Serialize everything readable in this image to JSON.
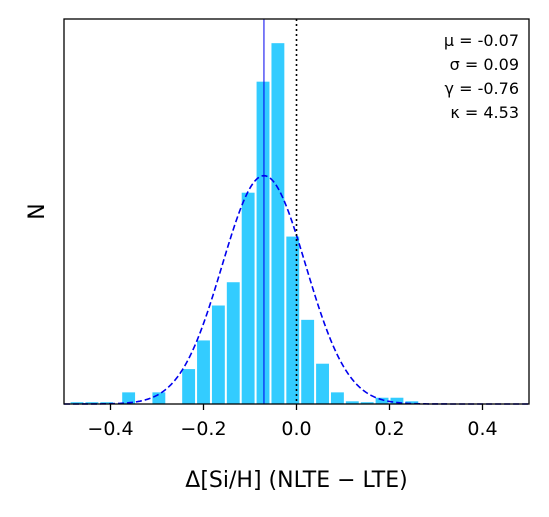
{
  "chart_data": {
    "type": "bar",
    "title": "",
    "xlabel": "Δ[Si/H] (NLTE − LTE)",
    "ylabel": "N",
    "xlim": [
      -0.5,
      0.5
    ],
    "ylim": [
      0,
      430
    ],
    "y_ticks_shown": false,
    "x_ticks": [
      -0.4,
      -0.2,
      0.0,
      0.2,
      0.4
    ],
    "x_tick_labels": [
      "−0.4",
      "−0.2",
      "0.0",
      "0.2",
      "0.4"
    ],
    "bar_color": "#33ccff",
    "bin_width": 0.032,
    "bars": [
      {
        "x": -0.472,
        "n": 2
      },
      {
        "x": -0.44,
        "n": 2
      },
      {
        "x": -0.408,
        "n": 2
      },
      {
        "x": -0.361,
        "n": 13
      },
      {
        "x": -0.296,
        "n": 13
      },
      {
        "x": -0.232,
        "n": 39
      },
      {
        "x": -0.2,
        "n": 71
      },
      {
        "x": -0.168,
        "n": 110
      },
      {
        "x": -0.136,
        "n": 136
      },
      {
        "x": -0.104,
        "n": 236
      },
      {
        "x": -0.072,
        "n": 360
      },
      {
        "x": -0.04,
        "n": 403
      },
      {
        "x": -0.008,
        "n": 187
      },
      {
        "x": 0.024,
        "n": 94
      },
      {
        "x": 0.056,
        "n": 45
      },
      {
        "x": 0.088,
        "n": 13
      },
      {
        "x": 0.12,
        "n": 3
      },
      {
        "x": 0.152,
        "n": 2
      },
      {
        "x": 0.184,
        "n": 7
      },
      {
        "x": 0.216,
        "n": 7
      },
      {
        "x": 0.248,
        "n": 3
      }
    ],
    "gaussian_fit": {
      "mu": -0.07,
      "sigma": 0.09,
      "peak": 255,
      "color": "#0000ee",
      "style": "dashed"
    },
    "mean_line": {
      "x": -0.07,
      "color": "#0000ee"
    },
    "zero_line": {
      "x": 0.0,
      "color": "#000000",
      "style": "dotted"
    },
    "annotations": [
      "μ = -0.07",
      "σ = 0.09",
      "γ = -0.76",
      "κ = 4.53"
    ]
  }
}
